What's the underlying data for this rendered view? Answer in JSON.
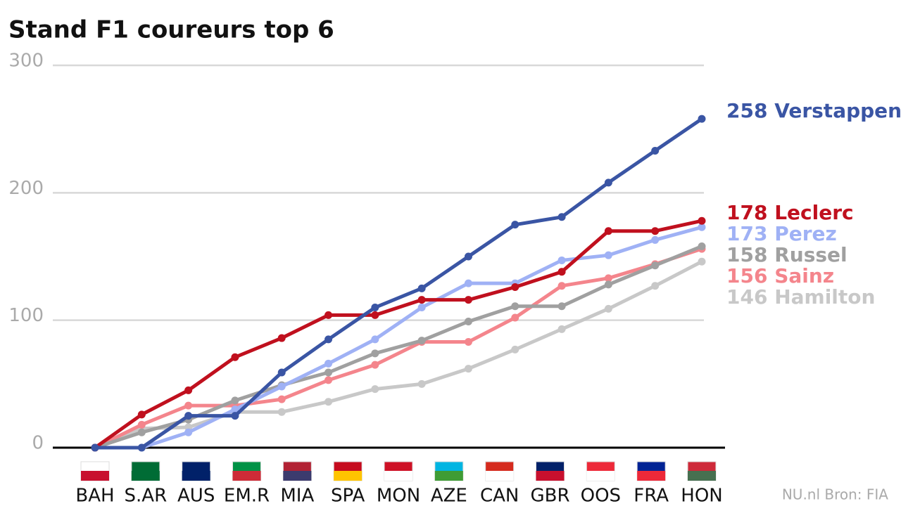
{
  "chart_data": {
    "type": "line",
    "title": "Stand F1 coureurs top 6",
    "categories": [
      null,
      "BAH",
      "S.AR",
      "AUS",
      "EM.R",
      "MIA",
      "SPA",
      "MON",
      "AZE",
      "CAN",
      "GBR",
      "OOS",
      "FRA",
      "HON"
    ],
    "series": [
      {
        "name": "Hamilton",
        "color": "#c8c8c8",
        "values": [
          0,
          15,
          16,
          28,
          28,
          36,
          46,
          50,
          62,
          77,
          93,
          109,
          127,
          146
        ]
      },
      {
        "name": "Sainz",
        "color": "#f4858c",
        "values": [
          0,
          18,
          33,
          33,
          38,
          53,
          65,
          83,
          83,
          102,
          127,
          133,
          144,
          156
        ]
      },
      {
        "name": "Russel",
        "color": "#a0a0a0",
        "values": [
          0,
          12,
          22,
          37,
          49,
          59,
          74,
          84,
          99,
          111,
          111,
          128,
          143,
          158
        ]
      },
      {
        "name": "Perez",
        "color": "#9fb1f5",
        "values": [
          0,
          0,
          12,
          30,
          48,
          66,
          85,
          110,
          129,
          129,
          147,
          151,
          163,
          173
        ]
      },
      {
        "name": "Leclerc",
        "color": "#c0101e",
        "values": [
          0,
          26,
          45,
          71,
          86,
          104,
          104,
          116,
          116,
          126,
          138,
          170,
          170,
          178
        ]
      },
      {
        "name": "Verstappen",
        "color": "#3a55a4",
        "values": [
          0,
          0,
          25,
          25,
          59,
          85,
          110,
          125,
          150,
          175,
          181,
          208,
          233,
          258
        ]
      }
    ],
    "ylim": [
      0,
      300
    ],
    "yticks": [
      0,
      100,
      200,
      300
    ],
    "grid": true,
    "source": "NU.nl Bron: FIA"
  }
}
